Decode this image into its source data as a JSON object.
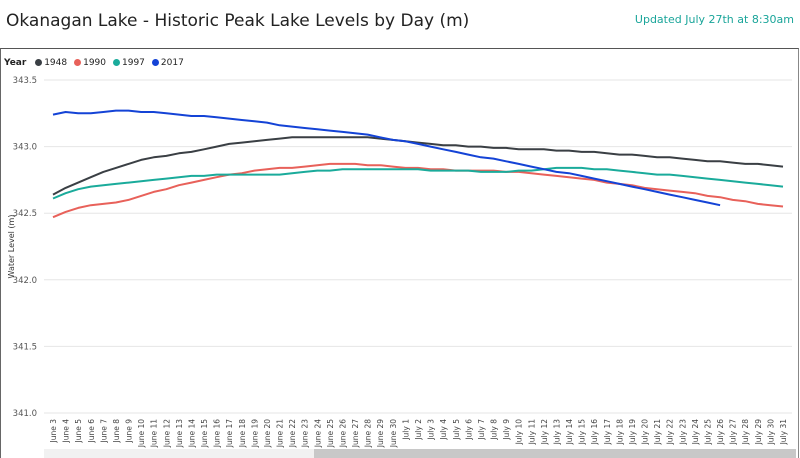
{
  "header": {
    "title": "Okanagan Lake - Historic Peak Lake Levels by Day (m)",
    "updated": "Updated July 27th at 8:30am"
  },
  "chart_data": {
    "type": "line",
    "title": "Okanagan Lake - Historic Peak Lake Levels by Day (m)",
    "xlabel": "",
    "ylabel": "Water Level (m)",
    "ylim": [
      341.0,
      343.5
    ],
    "yticks": [
      "341.0",
      "341.5",
      "342.0",
      "342.5",
      "343.0",
      "343.5"
    ],
    "grid": true,
    "legend_title": "Year",
    "legend_position": "top-left",
    "categories": [
      "June 3",
      "June 4",
      "June 5",
      "June 6",
      "June 7",
      "June 8",
      "June 9",
      "June 10",
      "June 11",
      "June 12",
      "June 13",
      "June 14",
      "June 15",
      "June 16",
      "June 17",
      "June 18",
      "June 19",
      "June 20",
      "June 21",
      "June 22",
      "June 23",
      "June 24",
      "June 25",
      "June 26",
      "June 27",
      "June 28",
      "June 29",
      "June 30",
      "July 1",
      "July 2",
      "July 3",
      "July 4",
      "July 5",
      "July 6",
      "July 7",
      "July 8",
      "July 9",
      "July 10",
      "July 11",
      "July 12",
      "July 13",
      "July 14",
      "July 15",
      "July 16",
      "July 17",
      "July 18",
      "July 19",
      "July 20",
      "July 21",
      "July 22",
      "July 23",
      "July 24",
      "July 25",
      "July 26",
      "July 27",
      "July 28",
      "July 29",
      "July 30",
      "July 31"
    ],
    "series": [
      {
        "name": "1948",
        "color": "#3a3f44",
        "values": [
          342.64,
          342.69,
          342.73,
          342.77,
          342.81,
          342.84,
          342.87,
          342.9,
          342.92,
          342.93,
          342.95,
          342.96,
          342.98,
          343.0,
          343.02,
          343.03,
          343.04,
          343.05,
          343.06,
          343.07,
          343.07,
          343.07,
          343.07,
          343.07,
          343.07,
          343.07,
          343.06,
          343.05,
          343.04,
          343.03,
          343.02,
          343.01,
          343.01,
          343.0,
          343.0,
          342.99,
          342.99,
          342.98,
          342.98,
          342.98,
          342.97,
          342.97,
          342.96,
          342.96,
          342.95,
          342.94,
          342.94,
          342.93,
          342.92,
          342.92,
          342.91,
          342.9,
          342.89,
          342.89,
          342.88,
          342.87,
          342.87,
          342.86,
          342.85
        ]
      },
      {
        "name": "1990",
        "color": "#e8615a",
        "values": [
          342.47,
          342.51,
          342.54,
          342.56,
          342.57,
          342.58,
          342.6,
          342.63,
          342.66,
          342.68,
          342.71,
          342.73,
          342.75,
          342.77,
          342.79,
          342.8,
          342.82,
          342.83,
          342.84,
          342.84,
          342.85,
          342.86,
          342.87,
          342.87,
          342.87,
          342.86,
          342.86,
          342.85,
          342.84,
          342.84,
          342.83,
          342.83,
          342.82,
          342.82,
          342.82,
          342.82,
          342.81,
          342.81,
          342.8,
          342.79,
          342.78,
          342.77,
          342.76,
          342.75,
          342.73,
          342.72,
          342.71,
          342.69,
          342.68,
          342.67,
          342.66,
          342.65,
          342.63,
          342.62,
          342.6,
          342.59,
          342.57,
          342.56,
          342.55
        ]
      },
      {
        "name": "1997",
        "color": "#1aab9b",
        "values": [
          342.61,
          342.65,
          342.68,
          342.7,
          342.71,
          342.72,
          342.73,
          342.74,
          342.75,
          342.76,
          342.77,
          342.78,
          342.78,
          342.79,
          342.79,
          342.79,
          342.79,
          342.79,
          342.79,
          342.8,
          342.81,
          342.82,
          342.82,
          342.83,
          342.83,
          342.83,
          342.83,
          342.83,
          342.83,
          342.83,
          342.82,
          342.82,
          342.82,
          342.82,
          342.81,
          342.81,
          342.81,
          342.82,
          342.82,
          342.83,
          342.84,
          342.84,
          342.84,
          342.83,
          342.83,
          342.82,
          342.81,
          342.8,
          342.79,
          342.79,
          342.78,
          342.77,
          342.76,
          342.75,
          342.74,
          342.73,
          342.72,
          342.71,
          342.7
        ]
      },
      {
        "name": "2017",
        "color": "#1443d6",
        "values": [
          343.24,
          343.26,
          343.25,
          343.25,
          343.26,
          343.27,
          343.27,
          343.26,
          343.26,
          343.25,
          343.24,
          343.23,
          343.23,
          343.22,
          343.21,
          343.2,
          343.19,
          343.18,
          343.16,
          343.15,
          343.14,
          343.13,
          343.12,
          343.11,
          343.1,
          343.09,
          343.07,
          343.05,
          343.04,
          343.02,
          343.0,
          342.98,
          342.96,
          342.94,
          342.92,
          342.91,
          342.89,
          342.87,
          342.85,
          342.83,
          342.81,
          342.8,
          342.78,
          342.76,
          342.74,
          342.72,
          342.7,
          342.68,
          342.66,
          342.64,
          342.62,
          342.6,
          342.58,
          342.56,
          null,
          null,
          null,
          null,
          null
        ]
      }
    ]
  }
}
